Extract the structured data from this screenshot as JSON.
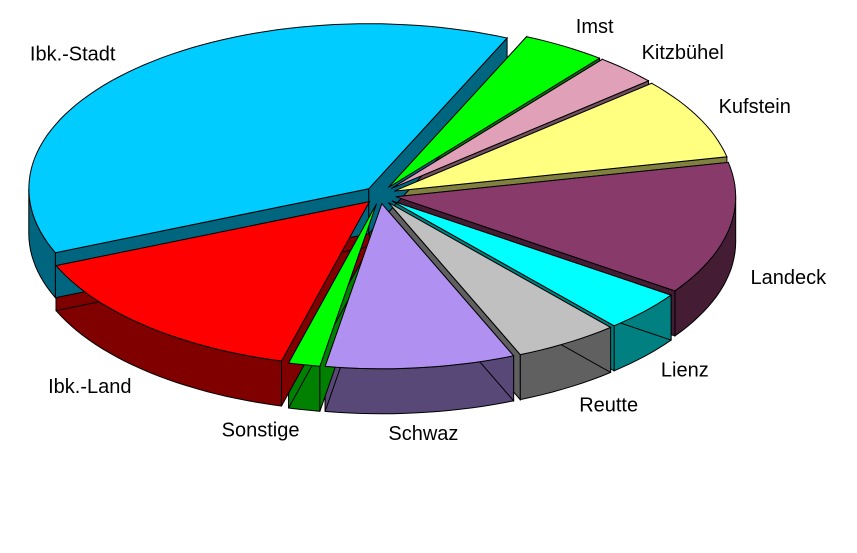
{
  "chart_data": {
    "type": "pie3d",
    "categories": [
      "Imst",
      "Kitzbühel",
      "Kufstein",
      "Landeck",
      "Lienz",
      "Reutte",
      "Schwaz",
      "Sonstige",
      "Ibk.-Land",
      "Ibk.-Stadt"
    ],
    "values": [
      4,
      3,
      8,
      13,
      4,
      5,
      9,
      1.5,
      14.5,
      38
    ],
    "colors": [
      "#00ff00",
      "#e0a0b8",
      "#ffff80",
      "#883a6a",
      "#00ffff",
      "#c0c0c0",
      "#b090f0",
      "#00ff00",
      "#ff0000",
      "#00ccff"
    ]
  }
}
